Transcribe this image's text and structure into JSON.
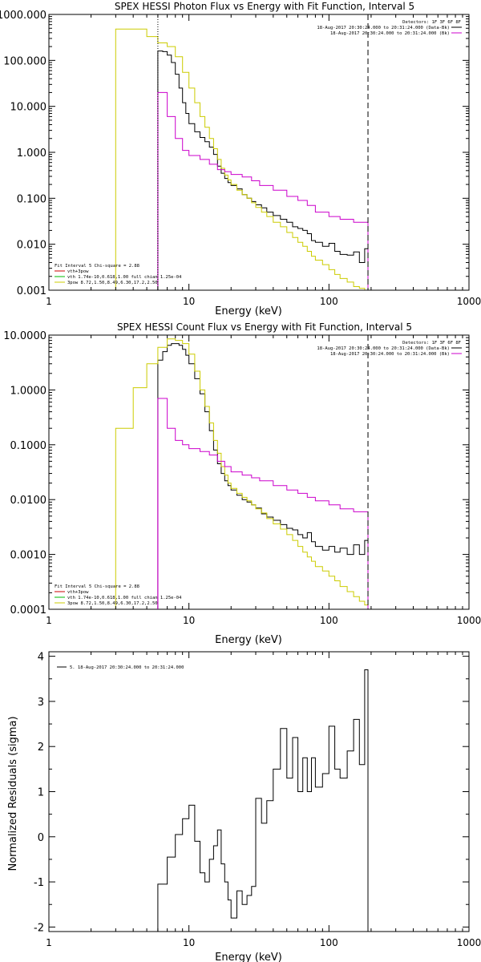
{
  "chart_data": [
    {
      "type": "line",
      "step": true,
      "title": "SPEX HESSI Photon Flux vs Energy with Fit Function, Interval 5",
      "xlabel": "Energy (keV)",
      "ylabel": "",
      "xscale": "log",
      "yscale": "log",
      "xlim": [
        1,
        1000
      ],
      "ylim": [
        0.001,
        1000
      ],
      "xticks": [
        "1",
        "10",
        "100",
        "1000"
      ],
      "yticks": [
        "0.001",
        "0.010",
        "0.100",
        "1.000",
        "10.000",
        "100.000",
        "1000.000"
      ],
      "vlines": [
        {
          "x": 6,
          "style": "dotted"
        },
        {
          "x": 190,
          "style": "dashed"
        }
      ],
      "legend_top": {
        "placement": "top-right",
        "lines": [
          {
            "text": "Detectors: 1F 3F 6F 8F",
            "color": ""
          },
          {
            "text": "18-Aug-2017 20:30:24.000 to 20:31:24.000 (Data-Bk)",
            "color": "#000000"
          },
          {
            "text": "18-Aug-2017 20:30:24.000 to 20:31:24.000 (Bk)",
            "color": "#cc00cc"
          }
        ]
      },
      "legend_bottom": {
        "placement": "bottom-left",
        "lines": [
          {
            "text": "Fit Interval 5   Chi-square = 2.88",
            "color": ""
          },
          {
            "text": "vth+3pow",
            "color": "#cc0000"
          },
          {
            "text": "vth 1.74e-10,0.618,1.00  full chian 1.25e-04",
            "color": "#00bb00"
          },
          {
            "text": "3pow 8.72,1.50,8.49,6.30,17.2,2.50",
            "color": "#cccc00"
          }
        ]
      },
      "series": [
        {
          "color": "#000000",
          "edges": [
            6,
            6.5,
            7,
            7.5,
            8,
            8.5,
            9,
            9.5,
            10,
            11,
            12,
            13,
            14,
            15,
            16,
            17,
            18,
            19,
            20,
            22,
            24,
            26,
            28,
            30,
            33,
            36,
            40,
            45,
            50,
            55,
            60,
            65,
            70,
            75,
            80,
            90,
            100,
            110,
            120,
            135,
            150,
            165,
            180,
            190
          ],
          "values": [
            160,
            155,
            130,
            90,
            50,
            25,
            12,
            7,
            4.2,
            2.8,
            2.1,
            1.7,
            1.3,
            0.9,
            0.5,
            0.35,
            0.27,
            0.22,
            0.19,
            0.16,
            0.12,
            0.1,
            0.085,
            0.072,
            0.062,
            0.05,
            0.042,
            0.035,
            0.03,
            0.024,
            0.022,
            0.02,
            0.017,
            0.012,
            0.011,
            0.009,
            0.0105,
            0.007,
            0.006,
            0.0058,
            0.0068,
            0.004,
            0.008
          ]
        },
        {
          "color": "#cccc00",
          "edges": [
            3,
            4,
            5,
            6,
            7,
            8,
            9,
            10,
            11,
            12,
            13,
            14,
            15,
            16,
            17,
            18,
            19,
            20,
            22,
            24,
            26,
            28,
            30,
            33,
            36,
            40,
            45,
            50,
            55,
            60,
            65,
            70,
            75,
            80,
            90,
            100,
            110,
            120,
            135,
            150,
            165,
            180,
            190
          ],
          "values": [
            480,
            480,
            330,
            240,
            200,
            120,
            55,
            25,
            12,
            6,
            3.5,
            2,
            1.2,
            0.7,
            0.45,
            0.32,
            0.25,
            0.2,
            0.15,
            0.12,
            0.1,
            0.08,
            0.063,
            0.05,
            0.04,
            0.03,
            0.024,
            0.018,
            0.014,
            0.011,
            0.009,
            0.007,
            0.0055,
            0.0045,
            0.0036,
            0.0028,
            0.0022,
            0.0018,
            0.0015,
            0.0012,
            0.0011,
            0.001
          ]
        },
        {
          "color": "#cc00cc",
          "edges": [
            6,
            7,
            8,
            9,
            10,
            12,
            14,
            16,
            18,
            20,
            24,
            28,
            32,
            40,
            50,
            60,
            70,
            80,
            100,
            120,
            150,
            190
          ],
          "values": [
            20,
            6,
            2,
            1.1,
            0.85,
            0.7,
            0.55,
            0.42,
            0.38,
            0.33,
            0.29,
            0.24,
            0.19,
            0.15,
            0.11,
            0.09,
            0.07,
            0.05,
            0.04,
            0.035,
            0.03
          ]
        }
      ]
    },
    {
      "type": "line",
      "step": true,
      "title": "SPEX HESSI Count Flux vs Energy with Fit Function, Interval 5",
      "xlabel": "Energy (keV)",
      "ylabel": "",
      "xscale": "log",
      "yscale": "log",
      "xlim": [
        1,
        1000
      ],
      "ylim": [
        0.0001,
        10
      ],
      "xticks": [
        "1",
        "10",
        "100",
        "1000"
      ],
      "yticks": [
        "0.0001",
        "0.0010",
        "0.0100",
        "0.1000",
        "1.0000",
        "10.0000"
      ],
      "vlines": [
        {
          "x": 6,
          "style": "solid-magenta"
        },
        {
          "x": 190,
          "style": "dashed"
        }
      ],
      "legend_top": {
        "placement": "top-right",
        "lines": [
          {
            "text": "Detectors: 1F 3F 6F 8F",
            "color": ""
          },
          {
            "text": "18-Aug-2017 20:30:24.000 to 20:31:24.000 (Data-Bk)",
            "color": "#000000"
          },
          {
            "text": "18-Aug-2017 20:30:24.000 to 20:31:24.000 (Bk)",
            "color": "#cc00cc"
          }
        ]
      },
      "legend_bottom": {
        "placement": "bottom-left",
        "lines": [
          {
            "text": "Fit Interval 5   Chi-square = 2.88",
            "color": ""
          },
          {
            "text": "vth+3pow",
            "color": "#cc0000"
          },
          {
            "text": "vth 1.74e-10,0.618,1.00  full chian 1.25e-04",
            "color": "#00bb00"
          },
          {
            "text": "3pow 8.72,1.50,8.49,6.30,17.2,2.50",
            "color": "#cccc00"
          }
        ]
      },
      "series": [
        {
          "color": "#000000",
          "edges": [
            6,
            6.5,
            7,
            7.5,
            8,
            8.5,
            9,
            9.5,
            10,
            11,
            12,
            13,
            14,
            15,
            16,
            17,
            18,
            19,
            20,
            22,
            24,
            26,
            28,
            30,
            33,
            36,
            40,
            45,
            50,
            55,
            60,
            65,
            70,
            75,
            80,
            90,
            100,
            110,
            120,
            135,
            150,
            165,
            180,
            190
          ],
          "values": [
            3.5,
            5,
            6.5,
            7,
            7,
            6.5,
            5.5,
            4.3,
            3,
            1.6,
            0.85,
            0.4,
            0.18,
            0.08,
            0.045,
            0.03,
            0.022,
            0.018,
            0.015,
            0.012,
            0.01,
            0.009,
            0.008,
            0.007,
            0.0055,
            0.0048,
            0.0042,
            0.0035,
            0.003,
            0.0028,
            0.0023,
            0.002,
            0.0025,
            0.0017,
            0.0014,
            0.0012,
            0.0014,
            0.0011,
            0.0013,
            0.001,
            0.0015,
            0.001,
            0.0018
          ]
        },
        {
          "color": "#cccc00",
          "edges": [
            3,
            4,
            5,
            6,
            7,
            8,
            9,
            10,
            11,
            12,
            13,
            14,
            15,
            16,
            17,
            18,
            19,
            20,
            22,
            24,
            26,
            28,
            30,
            33,
            36,
            40,
            45,
            50,
            55,
            60,
            65,
            70,
            75,
            80,
            90,
            100,
            110,
            120,
            135,
            150,
            165,
            180,
            190,
            200,
            220
          ],
          "values": [
            0.2,
            1.1,
            3,
            6,
            8.5,
            8,
            7,
            4.5,
            2.2,
            1,
            0.5,
            0.25,
            0.12,
            0.07,
            0.04,
            0.028,
            0.02,
            0.016,
            0.013,
            0.011,
            0.0095,
            0.008,
            0.0068,
            0.0057,
            0.0045,
            0.0036,
            0.0029,
            0.0023,
            0.0018,
            0.0014,
            0.0011,
            0.0009,
            0.00075,
            0.0006,
            0.0005,
            0.0004,
            0.00033,
            0.00026,
            0.00021,
            0.00017,
            0.00014,
            0.00012,
            0.0001,
            0.0001
          ]
        },
        {
          "color": "#cc00cc",
          "edges": [
            6,
            7,
            8,
            9,
            10,
            12,
            14,
            16,
            18,
            20,
            24,
            28,
            32,
            40,
            50,
            60,
            70,
            80,
            100,
            120,
            150,
            190
          ],
          "values": [
            0.7,
            0.2,
            0.12,
            0.1,
            0.085,
            0.075,
            0.065,
            0.05,
            0.04,
            0.032,
            0.028,
            0.025,
            0.022,
            0.018,
            0.015,
            0.013,
            0.011,
            0.0095,
            0.008,
            0.0068,
            0.006
          ]
        }
      ]
    },
    {
      "type": "line",
      "step": true,
      "title": "",
      "xlabel": "Energy (keV)",
      "ylabel": "Normalized Residuals (sigma)",
      "xscale": "log",
      "yscale": "linear",
      "xlim": [
        1,
        1000
      ],
      "ylim": [
        -2.1,
        4.1
      ],
      "xticks": [
        "1",
        "10",
        "100",
        "1000"
      ],
      "yticks": [
        "-2",
        "-1",
        "0",
        "1",
        "2",
        "3",
        "4"
      ],
      "legend_top": {
        "placement": "top-left",
        "lines": [
          {
            "text": "5. 18-Aug-2017 20:30:24.000 to 20:31:24.000",
            "color": "#000000"
          }
        ]
      },
      "series": [
        {
          "color": "#000000",
          "edges": [
            6,
            7,
            8,
            9,
            10,
            11,
            12,
            13,
            14,
            15,
            16,
            17,
            18,
            19,
            20,
            22,
            24,
            26,
            28,
            30,
            33,
            36,
            40,
            45,
            50,
            55,
            60,
            65,
            70,
            75,
            80,
            90,
            100,
            110,
            120,
            135,
            150,
            165,
            180,
            190
          ],
          "values": [
            -1.05,
            -0.45,
            0.05,
            0.4,
            0.7,
            -0.1,
            -0.8,
            -1.0,
            -0.5,
            -0.2,
            0.15,
            -0.6,
            -1.0,
            -1.4,
            -1.8,
            -1.2,
            -1.5,
            -1.3,
            -1.1,
            0.85,
            0.3,
            0.8,
            1.5,
            2.4,
            1.3,
            2.2,
            1.0,
            1.75,
            1.0,
            1.75,
            1.1,
            1.4,
            2.45,
            1.5,
            1.3,
            1.9,
            2.6,
            1.6,
            3.7
          ]
        }
      ]
    }
  ]
}
